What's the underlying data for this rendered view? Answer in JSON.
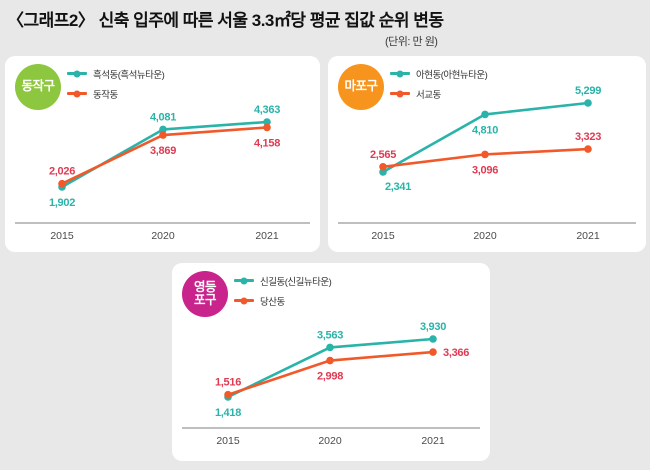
{
  "title": "〈그래프2〉 신축 입주에 따른 서울 3.3㎡당 평균 집값 순위 변동",
  "unit_note": "(단위: 만 원)",
  "colors": {
    "background": "#e8e8e8",
    "panel": "#ffffff",
    "teal": "#29b3a9",
    "orange": "#f1592a",
    "teal_label": "#29b3a9",
    "red_label": "#e03a52",
    "axis": "#999999",
    "tick_text": "#4a4a4a",
    "badge_dongjak": "#8dc63f",
    "badge_mapo": "#f7941d",
    "badge_yeongdeungpo": "#c9238c"
  },
  "chart_data": [
    {
      "id": "dongjak",
      "type": "line",
      "district": "동작구",
      "district_lines": [
        "동작구"
      ],
      "badge_color": "#8dc63f",
      "x": [
        "2015",
        "2020",
        "2021"
      ],
      "ylim": [
        1902,
        4363
      ],
      "grid": false,
      "legend_position": "top-left",
      "series": [
        {
          "name": "흑석동(흑석뉴타운)",
          "color": "#29b3a9",
          "label_color": "#29b3a9",
          "values": [
            1902,
            4081,
            4363
          ],
          "label_pos": [
            "below",
            "above",
            "above"
          ]
        },
        {
          "name": "동작동",
          "color": "#f1592a",
          "label_color": "#e03a52",
          "values": [
            2026,
            3869,
            4158
          ],
          "label_pos": [
            "above",
            "below",
            "below"
          ]
        }
      ]
    },
    {
      "id": "mapo",
      "type": "line",
      "district": "마포구",
      "district_lines": [
        "마포구"
      ],
      "badge_color": "#f7941d",
      "x": [
        "2015",
        "2020",
        "2021"
      ],
      "ylim": [
        2341,
        5299
      ],
      "grid": false,
      "legend_position": "top-left",
      "series": [
        {
          "name": "아현동(아현뉴타운)",
          "color": "#29b3a9",
          "label_color": "#29b3a9",
          "values": [
            2341,
            4810,
            5299
          ],
          "label_pos": [
            "below-right",
            "below",
            "above"
          ]
        },
        {
          "name": "서교동",
          "color": "#f1592a",
          "label_color": "#e03a52",
          "values": [
            2565,
            3096,
            3323
          ],
          "label_pos": [
            "above",
            "below",
            "above"
          ]
        }
      ]
    },
    {
      "id": "yeongdeungpo",
      "type": "line",
      "district": "영등포구",
      "district_lines": [
        "영등",
        "포구"
      ],
      "badge_color": "#c9238c",
      "x": [
        "2015",
        "2020",
        "2021"
      ],
      "ylim": [
        1418,
        3930
      ],
      "grid": false,
      "legend_position": "top-left",
      "series": [
        {
          "name": "신길동(신길뉴타운)",
          "color": "#29b3a9",
          "label_color": "#29b3a9",
          "values": [
            1418,
            3563,
            3930
          ],
          "label_pos": [
            "below",
            "above",
            "above"
          ]
        },
        {
          "name": "당산동",
          "color": "#f1592a",
          "label_color": "#e03a52",
          "values": [
            1516,
            2998,
            3366
          ],
          "label_pos": [
            "above",
            "below",
            "right"
          ]
        }
      ]
    }
  ]
}
